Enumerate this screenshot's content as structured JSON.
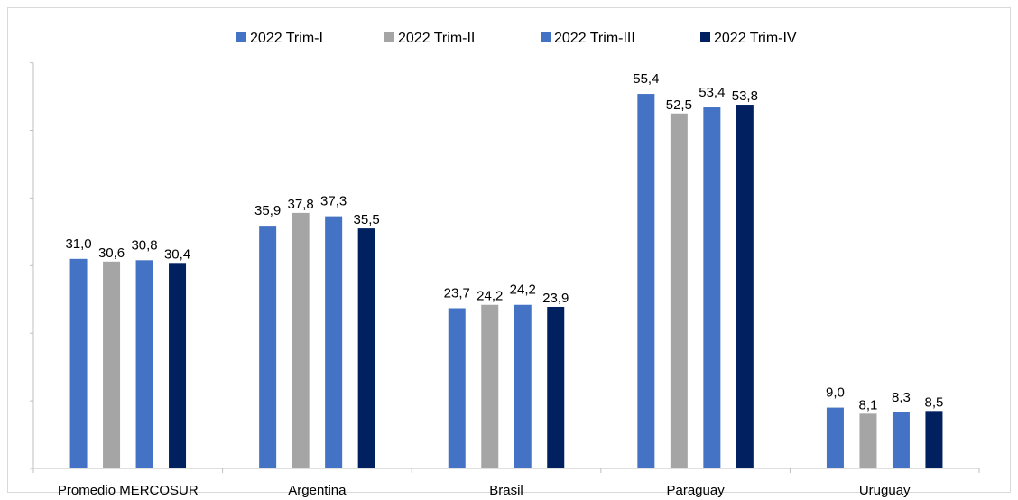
{
  "chart_data": {
    "type": "bar",
    "categories": [
      "Promedio MERCOSUR",
      "Argentina",
      "Brasil",
      "Paraguay",
      "Uruguay"
    ],
    "series": [
      {
        "name": "2022 Trim-I",
        "color": "#4472C4",
        "values": [
          31.0,
          35.9,
          23.7,
          55.4,
          9.0
        ],
        "labels": [
          "31,0",
          "35,9",
          "23,7",
          "55,4",
          "9,0"
        ]
      },
      {
        "name": "2022 Trim-II",
        "color": "#A5A5A5",
        "values": [
          30.6,
          37.8,
          24.2,
          52.5,
          8.1
        ],
        "labels": [
          "30,6",
          "37,8",
          "24,2",
          "52,5",
          "8,1"
        ]
      },
      {
        "name": "2022 Trim-III",
        "color": "#4472C4",
        "values": [
          30.8,
          37.3,
          24.2,
          53.4,
          8.3
        ],
        "labels": [
          "30,8",
          "37,3",
          "24,2",
          "53,4",
          "8,3"
        ]
      },
      {
        "name": "2022 Trim-IV",
        "color": "#002060",
        "values": [
          30.4,
          35.5,
          23.9,
          53.8,
          8.5
        ],
        "labels": [
          "30,4",
          "35,5",
          "23,9",
          "53,8",
          "8,5"
        ]
      }
    ],
    "ylim": [
      0,
      60
    ],
    "legend_position": "top",
    "grid": false
  }
}
